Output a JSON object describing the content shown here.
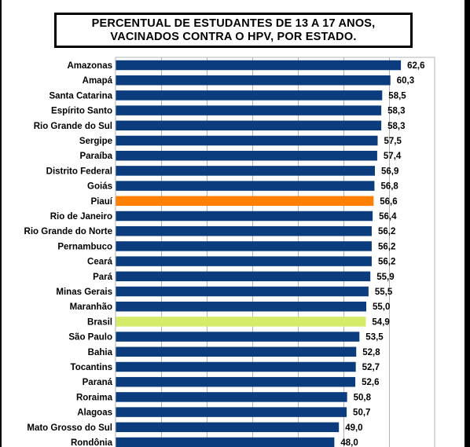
{
  "chart_data": {
    "type": "bar",
    "orientation": "horizontal",
    "title": "PERCENTUAL DE ESTUDANTES DE 13 A 17 ANOS,\nVACINADOS CONTRA O HPV, POR ESTADO.",
    "xlim": [
      0,
      70
    ],
    "grid": true,
    "legend": "none",
    "colors": {
      "default": "#0b3d7e",
      "highlight_piaui": "#ff8000",
      "highlight_brasil": "#d4ec6a"
    },
    "categories": [
      "Amazonas",
      "Amapá",
      "Santa Catarina",
      "Espírito Santo",
      "Rio Grande do Sul",
      "Sergipe",
      "Paraíba",
      "Distrito Federal",
      "Goiás",
      "Piauí",
      "Rio de Janeiro",
      "Rio Grande do Norte",
      "Pernambuco",
      "Ceará",
      "Pará",
      "Minas Gerais",
      "Maranhão",
      "Brasil",
      "São Paulo",
      "Bahia",
      "Tocantins",
      "Paraná",
      "Roraima",
      "Alagoas",
      "Mato Grosso do Sul",
      "Rondônia"
    ],
    "values": [
      62.6,
      60.3,
      58.5,
      58.3,
      58.3,
      57.5,
      57.4,
      56.9,
      56.8,
      56.6,
      56.4,
      56.2,
      56.2,
      56.2,
      55.9,
      55.5,
      55.0,
      54.9,
      53.5,
      52.8,
      52.7,
      52.6,
      50.8,
      50.7,
      49.0,
      48.0
    ],
    "value_labels": [
      "62,6",
      "60,3",
      "58,5",
      "58,3",
      "58,3",
      "57,5",
      "57,4",
      "56,9",
      "56,8",
      "56,6",
      "56,4",
      "56,2",
      "56,2",
      "56,2",
      "55,9",
      "55,5",
      "55,0",
      "54,9",
      "53,5",
      "52,8",
      "52,7",
      "52,6",
      "50,8",
      "50,7",
      "49,0",
      "48,0"
    ],
    "bar_colors": [
      "#0b3d7e",
      "#0b3d7e",
      "#0b3d7e",
      "#0b3d7e",
      "#0b3d7e",
      "#0b3d7e",
      "#0b3d7e",
      "#0b3d7e",
      "#0b3d7e",
      "#ff8000",
      "#0b3d7e",
      "#0b3d7e",
      "#0b3d7e",
      "#0b3d7e",
      "#0b3d7e",
      "#0b3d7e",
      "#0b3d7e",
      "#d4ec6a",
      "#0b3d7e",
      "#0b3d7e",
      "#0b3d7e",
      "#0b3d7e",
      "#0b3d7e",
      "#0b3d7e",
      "#0b3d7e",
      "#0b3d7e"
    ]
  }
}
